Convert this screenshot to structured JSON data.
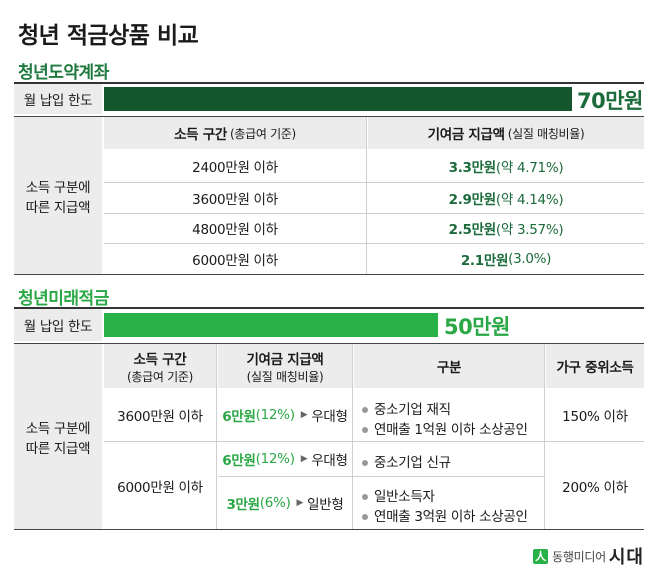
{
  "title": "청년 적금상품 비교",
  "section1": {
    "title": "청년도약계좌",
    "limit_label": "월 납입 한도",
    "limit_value": "70만원",
    "side_label_line1": "소득 구분에",
    "side_label_line2": "따른 지급액",
    "col1_header": "소득 구간",
    "col1_header_sub": "(총급여 기준)",
    "col2_header": "기여금 지급액",
    "col2_header_sub": "(실질 매칭비율)",
    "rows": [
      {
        "income": "2400만원 이하",
        "amount": "3.3만원",
        "rate": "(약 4.71%)"
      },
      {
        "income": "3600만원 이하",
        "amount": "2.9만원",
        "rate": "(약 4.14%)"
      },
      {
        "income": "4800만원 이하",
        "amount": "2.5만원",
        "rate": "(약 3.57%)"
      },
      {
        "income": "6000만원 이하",
        "amount": "2.1만원",
        "rate": "(3.0%)"
      }
    ]
  },
  "section2": {
    "title": "청년미래적금",
    "limit_label": "월 납입 한도",
    "limit_value": "50만원",
    "side_label_line1": "소득 구분에",
    "side_label_line2": "따른 지급액",
    "h_income": "소득 구간",
    "h_income_sub": "(총급여 기준)",
    "h_contrib": "기여금 지급액",
    "h_contrib_sub": "(실질 매칭비율)",
    "h_type": "구분",
    "h_median": "가구 중위소득",
    "row1": {
      "income": "3600만원 이하",
      "amount": "6만원",
      "rate": "(12%)",
      "kind": "우대형",
      "type1": "중소기업 재직",
      "type2": "연매출 1억원 이하 소상공인",
      "median": "150% 이하"
    },
    "row2": {
      "income": "6000만원 이하",
      "a_amount": "6만원",
      "a_rate": "(12%)",
      "a_kind": "우대형",
      "a_type": "중소기업 신규",
      "b_amount": "3만원",
      "b_rate": "(6%)",
      "b_kind": "일반형",
      "b_type1": "일반소득자",
      "b_type2": "연매출 3억원 이하 소상공인",
      "median": "200% 이하"
    }
  },
  "footer": {
    "brand": "동행미디어",
    "brand2": "시대"
  },
  "colors": {
    "dark_green": "#16562f",
    "bright_green": "#27b146",
    "title_green": "#1f7a3f"
  }
}
